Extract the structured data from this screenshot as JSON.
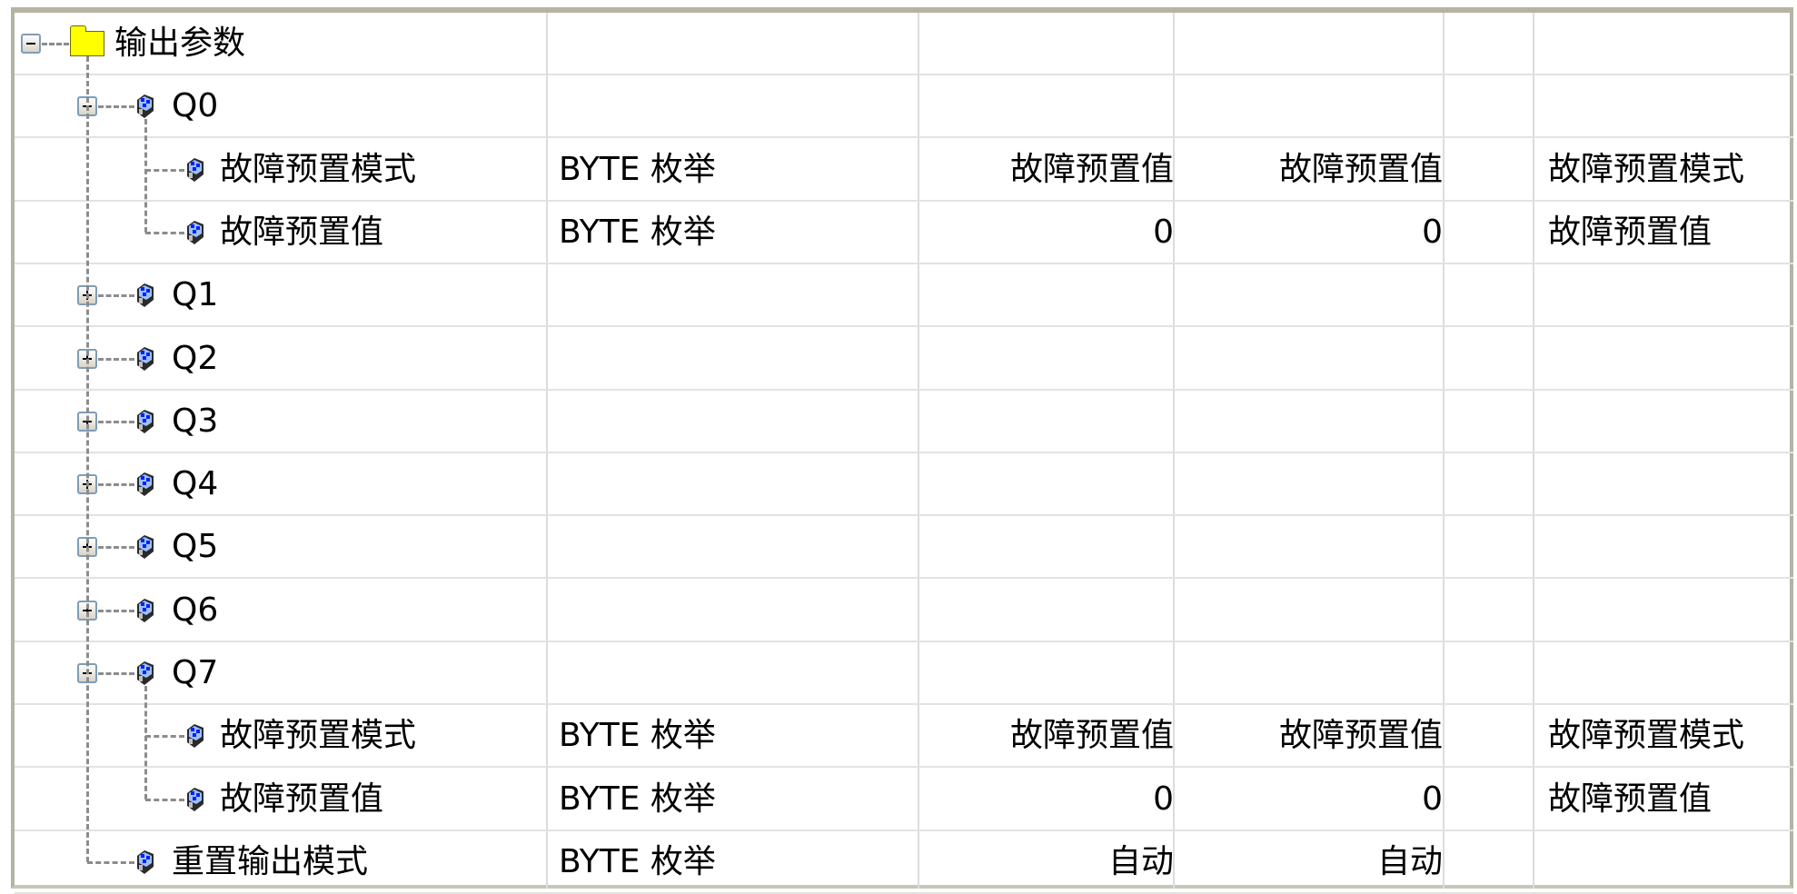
{
  "tree": {
    "rows": [
      {
        "label": "输出参数",
        "level": 0,
        "expander": "minus",
        "icon": "folder-icon",
        "type": "",
        "c2": "",
        "c3": "",
        "c5": ""
      },
      {
        "label": "Q0",
        "level": 1,
        "expander": "minus",
        "icon": "cube-icon",
        "type": "",
        "c2": "",
        "c3": "",
        "c5": ""
      },
      {
        "label": "故障预置模式",
        "level": 2,
        "expander": "",
        "icon": "cube-icon",
        "type": "BYTE 枚举",
        "c2": "故障预置值",
        "c3": "故障预置值",
        "c5": "故障预置模式"
      },
      {
        "label": "故障预置值",
        "level": 2,
        "expander": "",
        "icon": "cube-icon",
        "type": "BYTE 枚举",
        "c2": "0",
        "c3": "0",
        "c5": "故障预置值"
      },
      {
        "label": "Q1",
        "level": 1,
        "expander": "plus",
        "icon": "cube-icon",
        "type": "",
        "c2": "",
        "c3": "",
        "c5": ""
      },
      {
        "label": "Q2",
        "level": 1,
        "expander": "plus",
        "icon": "cube-icon",
        "type": "",
        "c2": "",
        "c3": "",
        "c5": ""
      },
      {
        "label": "Q3",
        "level": 1,
        "expander": "plus",
        "icon": "cube-icon",
        "type": "",
        "c2": "",
        "c3": "",
        "c5": ""
      },
      {
        "label": "Q4",
        "level": 1,
        "expander": "plus",
        "icon": "cube-icon",
        "type": "",
        "c2": "",
        "c3": "",
        "c5": ""
      },
      {
        "label": "Q5",
        "level": 1,
        "expander": "plus",
        "icon": "cube-icon",
        "type": "",
        "c2": "",
        "c3": "",
        "c5": ""
      },
      {
        "label": "Q6",
        "level": 1,
        "expander": "plus",
        "icon": "cube-icon",
        "type": "",
        "c2": "",
        "c3": "",
        "c5": ""
      },
      {
        "label": "Q7",
        "level": 1,
        "expander": "minus",
        "icon": "cube-icon",
        "type": "",
        "c2": "",
        "c3": "",
        "c5": ""
      },
      {
        "label": "故障预置模式",
        "level": 2,
        "expander": "",
        "icon": "cube-icon",
        "type": "BYTE 枚举",
        "c2": "故障预置值",
        "c3": "故障预置值",
        "c5": "故障预置模式"
      },
      {
        "label": "故障预置值",
        "level": 2,
        "expander": "",
        "icon": "cube-icon",
        "type": "BYTE 枚举",
        "c2": "0",
        "c3": "0",
        "c5": "故障预置值"
      },
      {
        "label": "重置输出模式",
        "level": 1,
        "expander": "",
        "icon": "cube-icon",
        "type": "BYTE 枚举",
        "c2": "自动",
        "c3": "自动",
        "c5": ""
      }
    ]
  },
  "colors": {
    "folder": "#ffff00",
    "tree_line": "#8c8c8c",
    "grid": "#e2e2e2",
    "frame": "#b5b3a2"
  }
}
